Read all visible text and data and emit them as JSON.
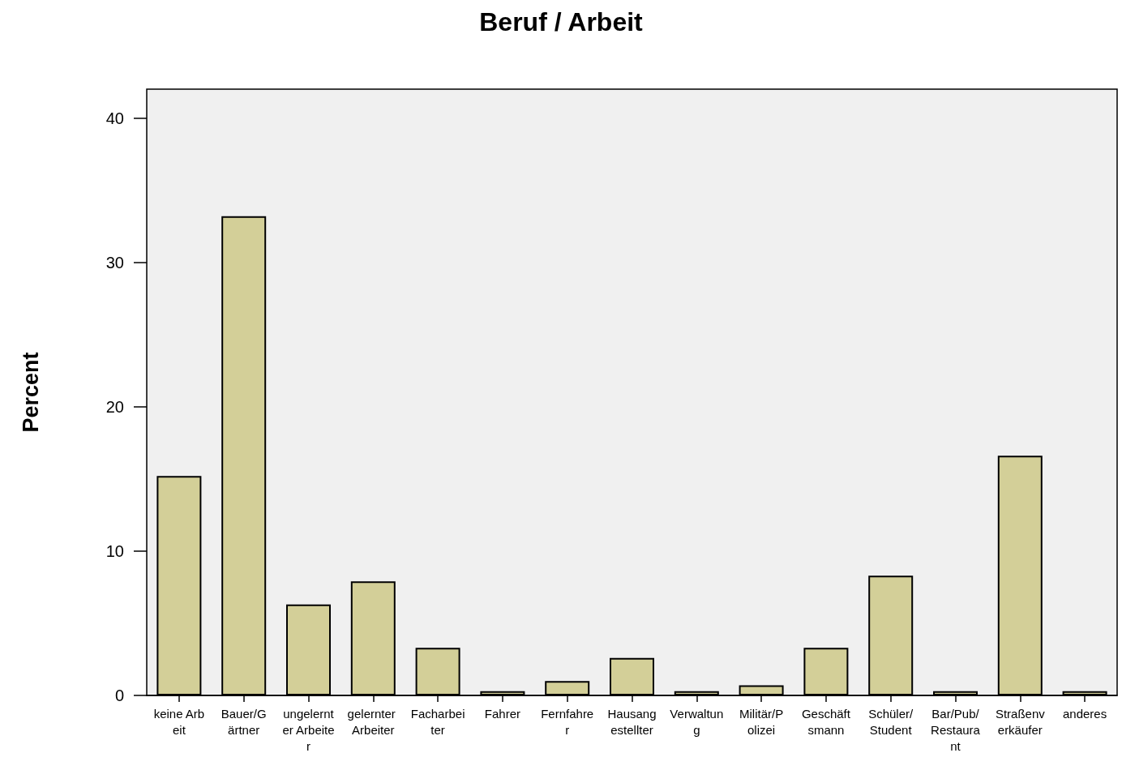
{
  "chart_data": {
    "type": "bar",
    "title": "Beruf / Arbeit",
    "ylabel": "Percent",
    "categories": [
      "keine Arbeit",
      "Bauer/Gärtner",
      "ungelernter Arbeiter",
      "gelernter Arbeiter",
      "Facharbeiter",
      "Fahrer",
      "Fernfahrer",
      "Hausangestellter",
      "Verwaltung",
      "Militär/Polizei",
      "Geschäftsmann",
      "Schüler/Student",
      "Bar/Pub/Restaurant",
      "Straßenverkäufer",
      "anderes"
    ],
    "values": [
      15.2,
      33.2,
      6.3,
      7.9,
      3.3,
      0.3,
      1.0,
      2.6,
      0.3,
      0.7,
      3.3,
      8.3,
      0.3,
      16.6,
      0.3
    ],
    "color": "#d3cf98",
    "ylim": [
      0,
      42
    ],
    "yticks": [
      0,
      10,
      20,
      30,
      40
    ],
    "grid": false
  }
}
